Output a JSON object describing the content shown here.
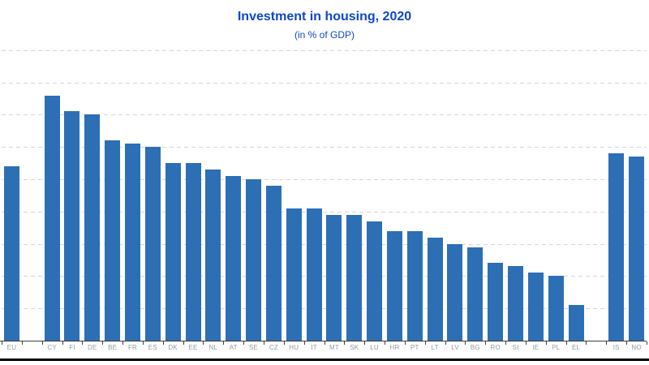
{
  "header": {
    "title": "Investment in housing, 2020",
    "subtitle": "(in % of GDP)"
  },
  "colors": {
    "bar": "#2d6fb5",
    "title": "#0e47cb",
    "gridline": "#d7d7d7",
    "axis": "#3f3f3f",
    "axis_label": "#8f9ba6",
    "footer_rule": "#000000"
  },
  "chart_data": {
    "type": "bar",
    "title": "Investment in housing, 2020",
    "subtitle": "(in % of GDP)",
    "xlabel": "",
    "ylabel": "% of GDP",
    "ylim": [
      0,
      9
    ],
    "grid": true,
    "grid_step": 1,
    "y_tick_labels_visible": false,
    "legend_position": "none",
    "categories": [
      "EU",
      "CY",
      "FI",
      "DE",
      "BE",
      "FR",
      "ES",
      "DK",
      "EE",
      "NL",
      "AT",
      "SE",
      "CZ",
      "HU",
      "IT",
      "MT",
      "SK",
      "LU",
      "HR",
      "PT",
      "LT",
      "LV",
      "BG",
      "RO",
      "SI",
      "IE",
      "PL",
      "EL",
      "IS",
      "NO"
    ],
    "values": [
      5.4,
      7.6,
      7.1,
      7.0,
      6.2,
      6.1,
      6.0,
      5.5,
      5.5,
      5.3,
      5.1,
      5.0,
      4.8,
      4.1,
      4.1,
      3.9,
      3.9,
      3.7,
      3.4,
      3.4,
      3.2,
      3.0,
      2.9,
      2.4,
      2.3,
      2.1,
      2.0,
      1.1,
      5.8,
      5.7
    ],
    "gaps_after": [
      "EU",
      "EL"
    ]
  }
}
